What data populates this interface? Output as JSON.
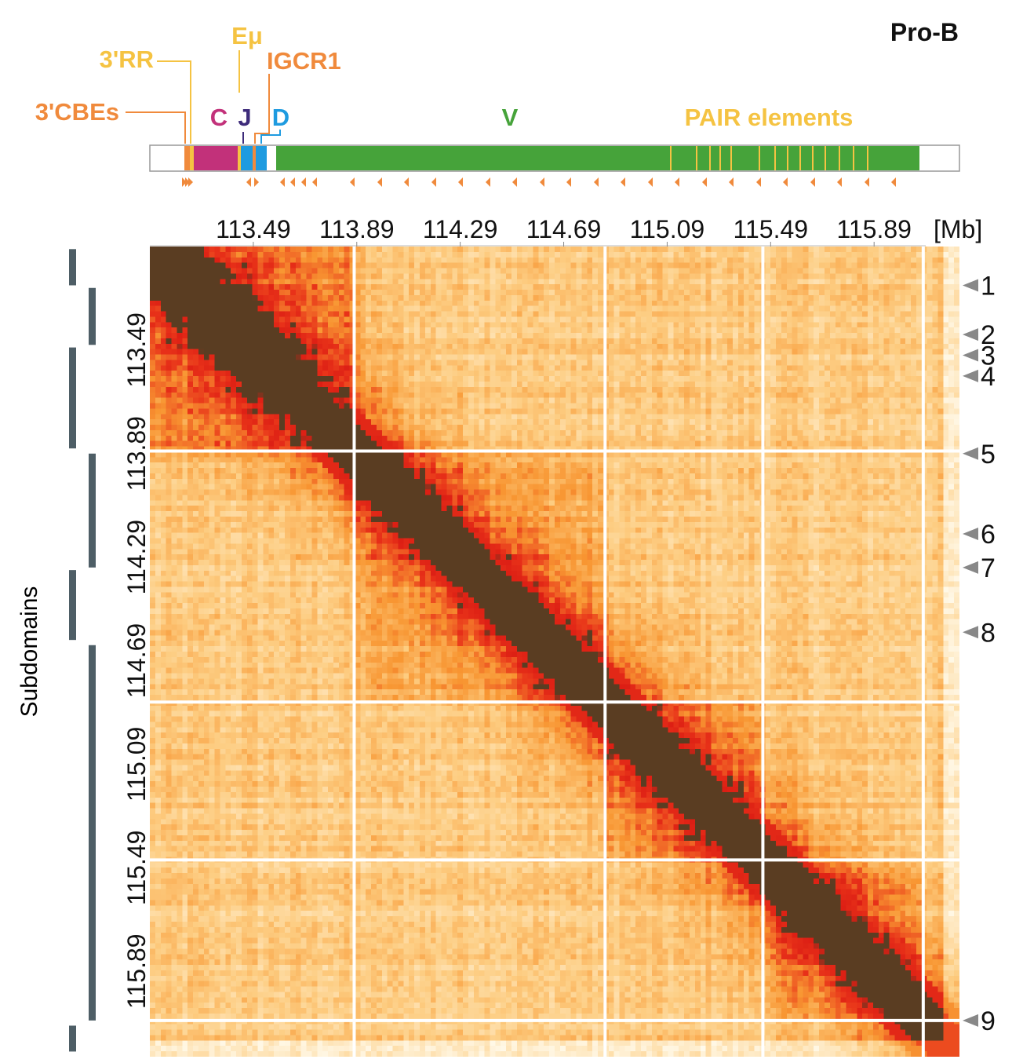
{
  "panel_label": "Pro-B",
  "colors": {
    "cbe": "#f08a3c",
    "rr": "#f5c342",
    "emu": "#f5c342",
    "igcr1": "#f08a3c",
    "c": "#c2317a",
    "j": "#3d2b7a",
    "d": "#1e9be0",
    "v": "#46a33a",
    "pair": "#f5c342",
    "heat_low": "#fff3dc",
    "heat_mid": "#f9a040",
    "heat_high": "#e8261a",
    "heat_max": "#5a3d22",
    "subdomain_bar": "#4e5e66",
    "marker": "#888888"
  },
  "gene_map": {
    "labels": {
      "cbe": "3'CBEs",
      "rr": "3'RR",
      "emu": "Eμ",
      "igcr1": "IGCR1",
      "c": "C",
      "j": "J",
      "d": "D",
      "v": "V",
      "pair": "PAIR elements"
    },
    "pair_element_count": 14,
    "orientation_arrow_count": 24
  },
  "subdomains_label": "Subdomains",
  "unit_label": "[Mb]",
  "chart_data": {
    "type": "heatmap",
    "title": "Pro-B",
    "x_ticks": [
      "113.49",
      "113.89",
      "114.29",
      "114.69",
      "115.09",
      "115.49",
      "115.89"
    ],
    "y_ticks": [
      "113.49",
      "113.89",
      "114.29",
      "114.69",
      "115.09",
      "115.49",
      "115.89"
    ],
    "tick_values_mb": [
      113.49,
      113.89,
      114.29,
      114.69,
      115.09,
      115.49,
      115.89
    ],
    "axis_unit": "[Mb]",
    "domain_boundaries_mb": [
      113.88,
      114.85,
      115.46,
      116.08
    ],
    "markers": [
      {
        "label": "1",
        "mb": 113.24
      },
      {
        "label": "2",
        "mb": 113.43
      },
      {
        "label": "3",
        "mb": 113.51
      },
      {
        "label": "4",
        "mb": 113.59
      },
      {
        "label": "5",
        "mb": 113.89
      },
      {
        "label": "6",
        "mb": 114.2
      },
      {
        "label": "7",
        "mb": 114.33
      },
      {
        "label": "8",
        "mb": 114.58
      },
      {
        "label": "9",
        "mb": 116.08
      }
    ],
    "subdomains_mb": [
      [
        113.1,
        113.24
      ],
      [
        113.25,
        113.47
      ],
      [
        113.48,
        113.87
      ],
      [
        113.89,
        114.33
      ],
      [
        114.34,
        114.61
      ],
      [
        114.63,
        116.08
      ],
      [
        116.1,
        116.2
      ]
    ],
    "color_scale": [
      "low",
      "mid",
      "high",
      "max"
    ]
  }
}
